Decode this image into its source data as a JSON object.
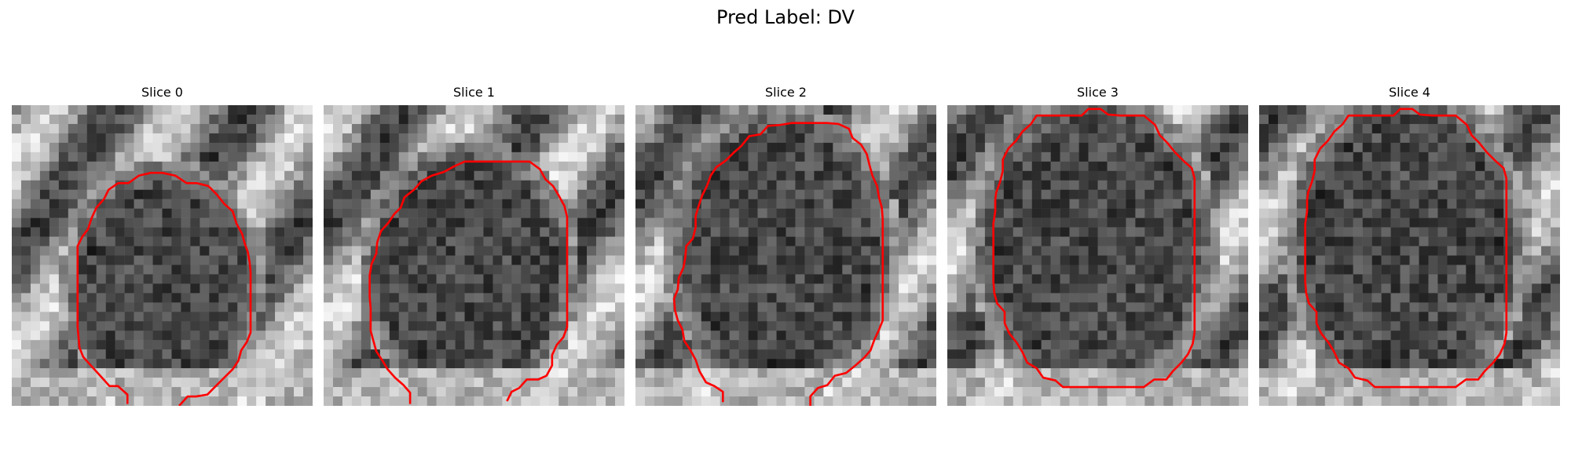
{
  "figure": {
    "title": "Pred Label: DV"
  },
  "panels": [
    {
      "title": "Slice 0"
    },
    {
      "title": "Slice 1"
    },
    {
      "title": "Slice 2"
    },
    {
      "title": "Slice 3"
    },
    {
      "title": "Slice 4"
    }
  ],
  "colors": {
    "contour": "#ff0000"
  }
}
